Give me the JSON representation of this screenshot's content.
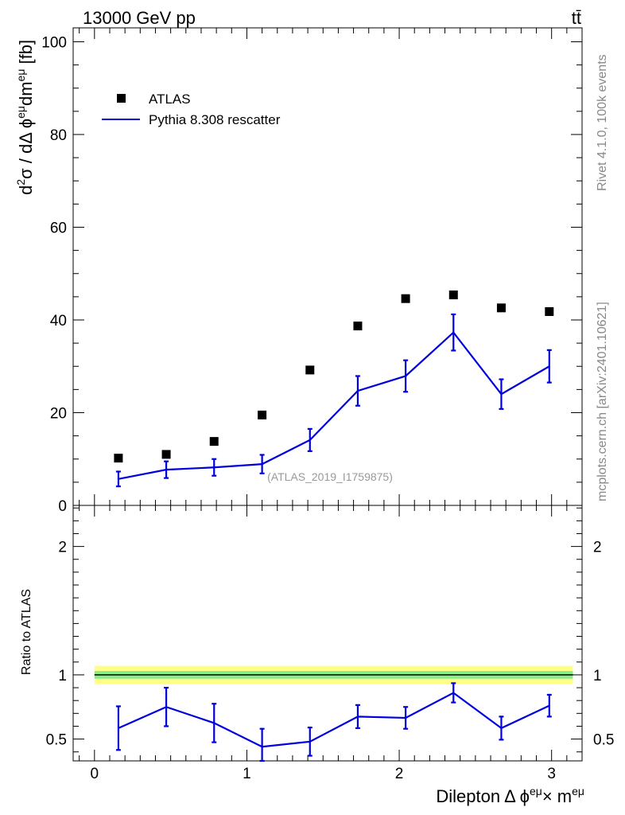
{
  "header": {
    "energy_label": "13000 GeV pp",
    "process_label": "tt̄"
  },
  "side_text": {
    "rivet": "Rivet 4.1.0,  100k events",
    "source": "mcplots.cern.ch [arXiv:2401.10621]"
  },
  "analysis_id": "(ATLAS_2019_I1759875)",
  "legend": {
    "data_label": "ATLAS",
    "mc_label": "Pythia 8.308 rescatter"
  },
  "colors": {
    "mc": "#0000dd",
    "data": "#000000",
    "band_outer": "#ffff88",
    "band_inner": "#88ee88"
  },
  "chart_data": [
    {
      "type": "scatter",
      "panel": "main",
      "ylabel_parts": {
        "d": "d",
        "two": "2",
        "sigma": "σ / dΔ ",
        "phi": "ϕ",
        "sup1": "eμ",
        "dm": "dm",
        "sup2": "eμ",
        "unit": " [fb]"
      },
      "xlim": [
        -0.14,
        3.2
      ],
      "ylim": [
        0,
        103
      ],
      "yticks": [
        0,
        20,
        40,
        60,
        80,
        100
      ],
      "series": [
        {
          "name": "ATLAS",
          "x": [
            0.157,
            0.471,
            0.785,
            1.1,
            1.414,
            1.728,
            2.042,
            2.356,
            2.67,
            2.985
          ],
          "values": [
            10.2,
            11.0,
            13.8,
            19.5,
            29.2,
            38.7,
            44.6,
            45.4,
            42.6,
            41.8
          ]
        },
        {
          "name": "Pythia 8.308 rescatter",
          "x": [
            0.157,
            0.471,
            0.785,
            1.1,
            1.414,
            1.728,
            2.042,
            2.356,
            2.67,
            2.985
          ],
          "values": [
            5.7,
            7.7,
            8.2,
            8.9,
            14.1,
            24.7,
            27.9,
            37.3,
            24.0,
            30.0
          ],
          "errors": [
            1.6,
            1.8,
            1.8,
            2.0,
            2.4,
            3.2,
            3.4,
            3.9,
            3.2,
            3.5
          ]
        }
      ]
    },
    {
      "type": "line",
      "panel": "ratio",
      "ylabel": "Ratio to ATLAS",
      "xlabel_parts": {
        "pre": "Dilepton",
        "delta": "Δ ",
        "phi": "ϕ",
        "sup1": "eμ",
        "times": "× m",
        "sup2": "eμ"
      },
      "xlim": [
        -0.14,
        3.2
      ],
      "ylim": [
        0.33,
        2.32
      ],
      "yticks": [
        0.5,
        1,
        2
      ],
      "ytick_labels": [
        "0.5",
        "1",
        "2"
      ],
      "xticks": [
        0,
        1,
        2,
        3
      ],
      "xtick_labels": [
        "0",
        "1",
        "2",
        "3"
      ],
      "band_x_range": [
        0,
        3.14
      ],
      "band_outer": [
        0.93,
        1.07
      ],
      "band_inner": [
        0.97,
        1.03
      ],
      "series": [
        {
          "name": "Pythia 8.308 rescatter / ATLAS",
          "x": [
            0.157,
            0.471,
            0.785,
            1.1,
            1.414,
            1.728,
            2.042,
            2.356,
            2.67,
            2.985
          ],
          "values": [
            0.585,
            0.75,
            0.625,
            0.44,
            0.48,
            0.675,
            0.665,
            0.86,
            0.585,
            0.76
          ],
          "errors": [
            0.17,
            0.15,
            0.15,
            0.14,
            0.11,
            0.09,
            0.085,
            0.075,
            0.09,
            0.085
          ]
        }
      ]
    }
  ]
}
